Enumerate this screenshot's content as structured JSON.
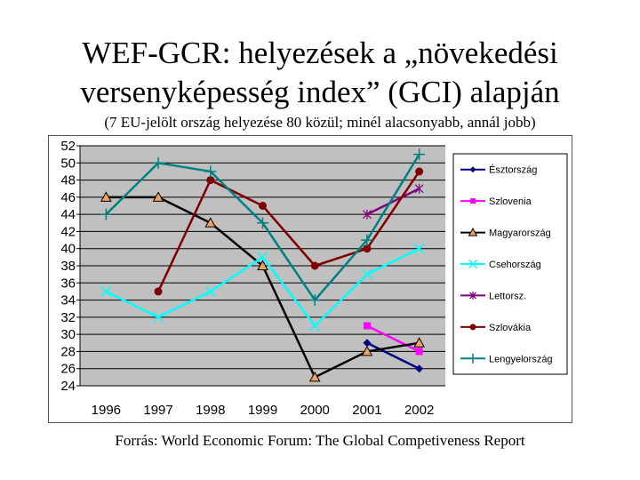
{
  "slide": {
    "title_line1": "WEF-GCR: helyezések a „növekedési",
    "title_line2": "versenyképesség index” (GCI) alapján",
    "subtitle": "(7  EU-jelölt ország helyezése 80 közül; minél alacsonyabb, annál jobb)",
    "source": "Forrás: World Economic Forum: The Global Competiveness Report"
  },
  "chart_data": {
    "type": "line",
    "x": [
      "1996",
      "1997",
      "1998",
      "1999",
      "2000",
      "2001",
      "2002"
    ],
    "ylim": [
      24,
      52
    ],
    "yticks": [
      24,
      26,
      28,
      30,
      32,
      34,
      36,
      38,
      40,
      42,
      44,
      46,
      48,
      50,
      52
    ],
    "plot_background": "#c0c0c0",
    "grid": "horizontal",
    "legend_position": "right",
    "series": [
      {
        "name": "Észtország",
        "color": "#000080",
        "marker": "diamond",
        "values": [
          null,
          null,
          null,
          null,
          null,
          29,
          26
        ]
      },
      {
        "name": "Szlovenia",
        "color": "#ff00ff",
        "marker": "square",
        "values": [
          null,
          null,
          null,
          null,
          null,
          31,
          28
        ]
      },
      {
        "name": "Magyarország",
        "color": "#000000",
        "marker": "triangle",
        "marker_fill": "#f0a060",
        "values": [
          46,
          46,
          43,
          38,
          25,
          28,
          29
        ]
      },
      {
        "name": "Csehország",
        "color": "#00ffff",
        "marker": "x",
        "values": [
          35,
          32,
          35,
          39,
          31,
          37,
          40
        ]
      },
      {
        "name": "Lettorsz.",
        "color": "#800080",
        "marker": "asterisk",
        "values": [
          null,
          null,
          null,
          null,
          null,
          44,
          47
        ]
      },
      {
        "name": "Szlovákia",
        "color": "#800000",
        "marker": "circle",
        "values": [
          null,
          35,
          48,
          45,
          38,
          40,
          49
        ]
      },
      {
        "name": "Lengyelország",
        "color": "#008080",
        "marker": "plus",
        "values": [
          44,
          50,
          49,
          43,
          34,
          41,
          51
        ]
      }
    ]
  }
}
